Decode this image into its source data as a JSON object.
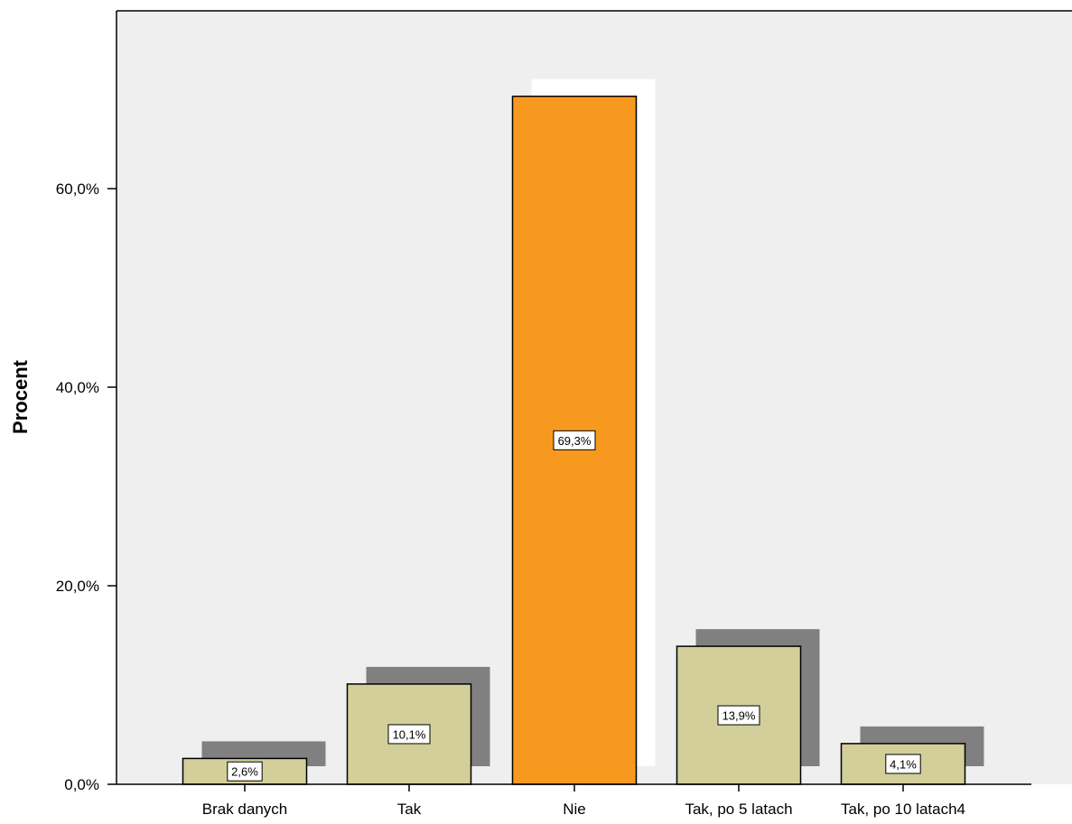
{
  "chart_data": {
    "type": "bar",
    "ylabel": "Procent",
    "xlabel": "",
    "categories": [
      "Brak danych",
      "Tak",
      "Nie",
      "Tak, po 5 latach",
      "Tak, po 10 latach4"
    ],
    "values": [
      2.6,
      10.1,
      69.3,
      13.9,
      4.1
    ],
    "data_labels": [
      "2,6%",
      "10,1%",
      "69,3%",
      "13,9%",
      "4,1%"
    ],
    "highlighted_category": "Nie",
    "yticks": [
      {
        "value": 0,
        "label": "0,0%"
      },
      {
        "value": 20,
        "label": "20,0%"
      },
      {
        "value": 40,
        "label": "40,0%"
      },
      {
        "value": 60,
        "label": "60,0%"
      }
    ],
    "ylim": [
      0,
      79
    ],
    "grid": false,
    "legend": "none",
    "colors": {
      "plot_background": "#efefef",
      "bar_fill": "#d3cf9a",
      "bar_highlight": "#f7991f",
      "bar_shadow": "#808080",
      "highlight_shadow": "#ffffff",
      "axis": "#000000"
    }
  }
}
